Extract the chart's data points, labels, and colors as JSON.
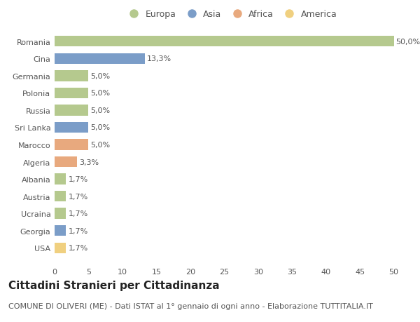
{
  "countries": [
    "Romania",
    "Cina",
    "Germania",
    "Polonia",
    "Russia",
    "Sri Lanka",
    "Marocco",
    "Algeria",
    "Albania",
    "Austria",
    "Ucraina",
    "Georgia",
    "USA"
  ],
  "values": [
    50.0,
    13.3,
    5.0,
    5.0,
    5.0,
    5.0,
    5.0,
    3.3,
    1.7,
    1.7,
    1.7,
    1.7,
    1.7
  ],
  "labels": [
    "50,0%",
    "13,3%",
    "5,0%",
    "5,0%",
    "5,0%",
    "5,0%",
    "5,0%",
    "3,3%",
    "1,7%",
    "1,7%",
    "1,7%",
    "1,7%",
    "1,7%"
  ],
  "continents": [
    "Europa",
    "Asia",
    "Europa",
    "Europa",
    "Europa",
    "Asia",
    "Africa",
    "Africa",
    "Europa",
    "Europa",
    "Europa",
    "Asia",
    "America"
  ],
  "continent_colors": {
    "Europa": "#b5c98e",
    "Asia": "#7b9dc8",
    "Africa": "#e8a97e",
    "America": "#f0d080"
  },
  "legend_order": [
    "Europa",
    "Asia",
    "Africa",
    "America"
  ],
  "xlim": [
    0,
    52
  ],
  "xticks": [
    0,
    5,
    10,
    15,
    20,
    25,
    30,
    35,
    40,
    45,
    50
  ],
  "title": "Cittadini Stranieri per Cittadinanza",
  "subtitle": "COMUNE DI OLIVERI (ME) - Dati ISTAT al 1° gennaio di ogni anno - Elaborazione TUTTITALIA.IT",
  "background_color": "#ffffff",
  "bar_height": 0.62,
  "title_fontsize": 11,
  "subtitle_fontsize": 8,
  "label_fontsize": 8,
  "tick_fontsize": 8,
  "legend_fontsize": 9
}
